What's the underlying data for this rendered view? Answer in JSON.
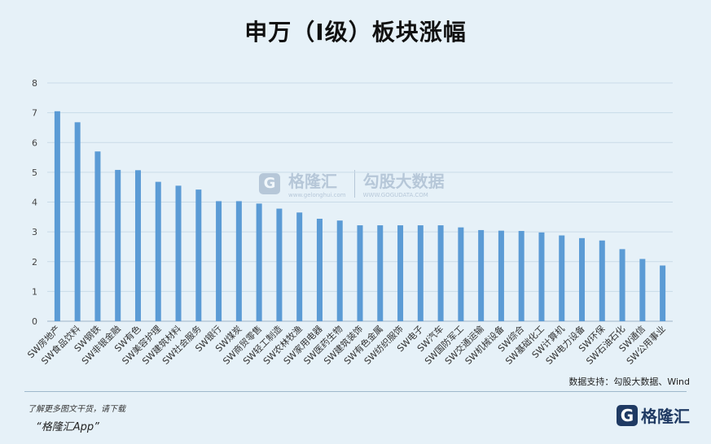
{
  "chart_data": {
    "type": "bar",
    "title": "申万（I级）板块涨幅",
    "ylim": [
      0,
      8
    ],
    "yticks": [
      0,
      1,
      2,
      3,
      4,
      5,
      6,
      7,
      8
    ],
    "grid": true,
    "color": "#5b9bd5",
    "categories": [
      "SW房地产",
      "SW食品饮料",
      "SW钢铁",
      "SW非银金融",
      "SW有色",
      "SW美容护理",
      "SW建筑材料",
      "SW社会服务",
      "SW银行",
      "SW煤炭",
      "SW商贸零售",
      "SW轻工制造",
      "SW农林牧渔",
      "SW家用电器",
      "SW医药生物",
      "SW建筑装饰",
      "SW有色金属",
      "SW纺织服饰",
      "SW电子",
      "SW汽车",
      "SW国防军工",
      "SW交通运输",
      "SW机械设备",
      "SW综合",
      "SW基础化工",
      "SW计算机",
      "SW电力设备",
      "SW环保",
      "SW石油石化",
      "SW通信",
      "SW公用事业"
    ],
    "values": [
      7.05,
      6.68,
      5.7,
      5.08,
      5.07,
      4.68,
      4.55,
      4.42,
      4.03,
      4.03,
      3.95,
      3.78,
      3.65,
      3.44,
      3.38,
      3.22,
      3.22,
      3.22,
      3.22,
      3.22,
      3.15,
      3.06,
      3.04,
      3.03,
      2.98,
      2.88,
      2.79,
      2.71,
      2.42,
      2.09,
      1.87
    ]
  },
  "source": "数据支持：勾股大数据、Wind",
  "footer": {
    "note": "了解更多图文干货，请下载",
    "app": "“格隆汇App”"
  },
  "brand": {
    "mark": "G",
    "name": "格隆汇"
  },
  "watermark": {
    "mark": "G",
    "name": "格隆汇",
    "url": "www.gelonghui.com",
    "name2": "勾股大数据",
    "url2": "WWW.GOGUDATA.COM"
  }
}
